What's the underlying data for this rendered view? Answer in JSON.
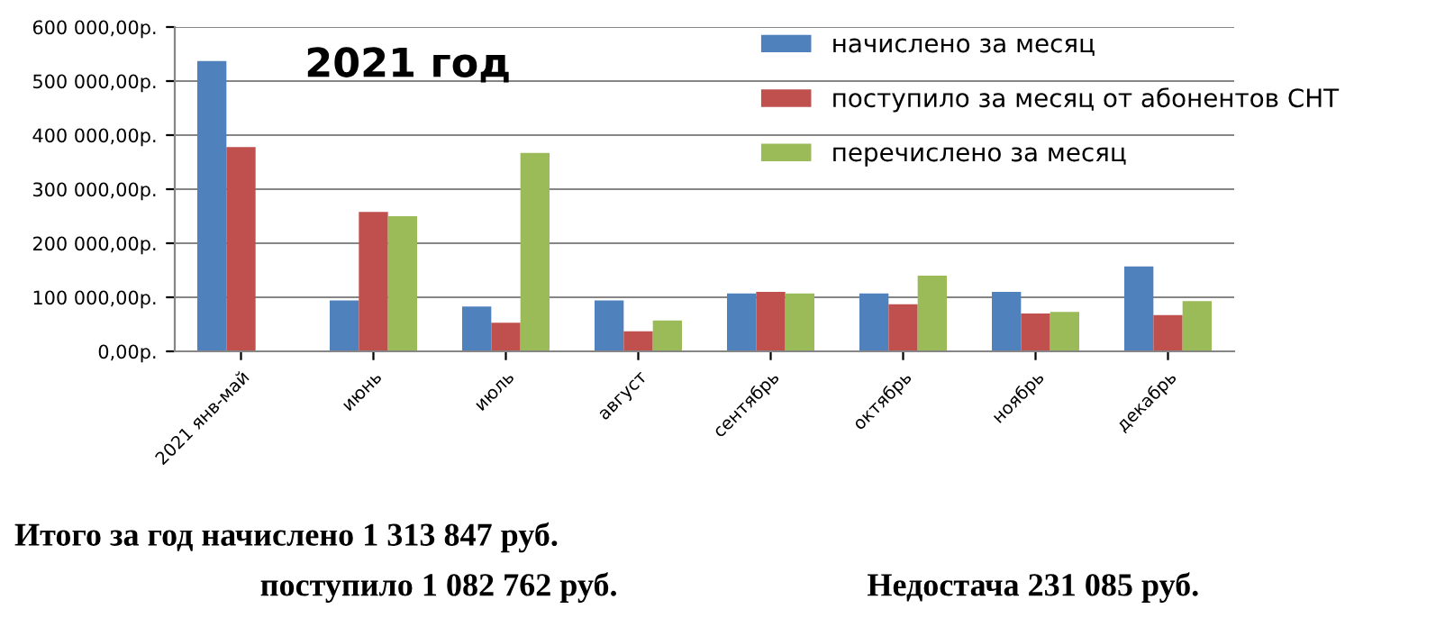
{
  "chart_data": {
    "type": "bar",
    "title": "2021 год",
    "categories": [
      "2021 янв-май",
      "июнь",
      "июль",
      "август",
      "сентябрь",
      "октябрь",
      "ноябрь",
      "декабрь"
    ],
    "series": [
      {
        "name": "начислено за месяц",
        "color": "#4f81bd",
        "values": [
          537000,
          94000,
          83000,
          94000,
          107000,
          107000,
          110000,
          157000
        ]
      },
      {
        "name": "поступило за месяц от абонентов СНТ",
        "color": "#c0504d",
        "values": [
          378000,
          258000,
          53000,
          37000,
          110000,
          87000,
          70000,
          67000
        ]
      },
      {
        "name": "перечислено за месяц",
        "color": "#9bbb59",
        "values": [
          null,
          250000,
          367000,
          57000,
          107000,
          140000,
          73000,
          93000
        ]
      }
    ],
    "ylim": [
      0,
      600000
    ],
    "yticks": [
      {
        "value": 0,
        "label": "0,00р."
      },
      {
        "value": 100000,
        "label": "100 000,00р."
      },
      {
        "value": 200000,
        "label": "200 000,00р."
      },
      {
        "value": 300000,
        "label": "300 000,00р."
      },
      {
        "value": 400000,
        "label": "400 000,00р."
      },
      {
        "value": 500000,
        "label": "500 000,00р."
      },
      {
        "value": 600000,
        "label": "600 000,00р."
      }
    ],
    "grid": "y",
    "legend": "top right",
    "annotations": [
      "Итого за год начислено 1 313 847 руб.",
      "поступило 1 082 762 руб.",
      "Недостача 231 085 руб."
    ]
  }
}
